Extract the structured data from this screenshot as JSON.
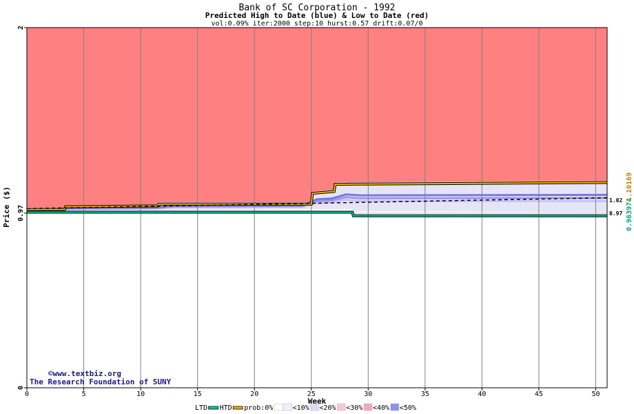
{
  "chart_data": {
    "type": "area",
    "title": "Bank of SC Corporation - 1992",
    "subtitle": "Predicted High to Date (blue) &  Low to Date (red)",
    "params": "vol:0.09% iter:2000 step:10 hurst:0.57 drift:0.07/0",
    "xlabel": "Week",
    "ylabel": "Price ($)",
    "xlim": [
      0,
      51
    ],
    "ylim": [
      0,
      2
    ],
    "x_ticks": [
      0,
      5,
      10,
      15,
      20,
      25,
      30,
      35,
      40,
      45,
      50
    ],
    "y_ticks": [
      0,
      0.97,
      2
    ],
    "y_tick_labels": [
      "0",
      "0.97",
      "2"
    ],
    "grid": true,
    "right_labels": [
      "0.97",
      "1.02"
    ],
    "right_axis_values": [
      "0.963974",
      "1.10169"
    ],
    "series": [
      {
        "name": "HTD",
        "color": "#f0b400",
        "points": [
          [
            0,
            0.99
          ],
          [
            3.3,
            0.99
          ],
          [
            3.4,
            1.005
          ],
          [
            11.5,
            1.01
          ],
          [
            11.6,
            1.02
          ],
          [
            25.0,
            1.02
          ],
          [
            25.1,
            1.08
          ],
          [
            27.0,
            1.09
          ],
          [
            27.1,
            1.13
          ],
          [
            51,
            1.14
          ]
        ]
      },
      {
        "name": "LTD",
        "color": "#00c8a0",
        "points": [
          [
            0,
            0.975
          ],
          [
            28.6,
            0.975
          ],
          [
            28.7,
            0.955
          ],
          [
            51,
            0.955
          ]
        ]
      }
    ],
    "bands": {
      "upper_edge": [
        [
          0,
          1.0
        ],
        [
          3.3,
          1.0
        ],
        [
          3.4,
          1.01
        ],
        [
          11.5,
          1.015
        ],
        [
          11.6,
          1.03
        ],
        [
          25.0,
          1.03
        ],
        [
          25.1,
          1.09
        ],
        [
          27.0,
          1.1
        ],
        [
          27.1,
          1.14
        ],
        [
          51,
          1.15
        ]
      ],
      "lower_edge": [
        [
          0,
          0.982
        ],
        [
          10,
          0.985
        ],
        [
          20,
          0.99
        ],
        [
          28.6,
          0.992
        ],
        [
          28.7,
          0.98
        ],
        [
          51,
          0.975
        ]
      ]
    },
    "legend": [
      "LTD",
      "HTD",
      "prob:0%",
      "<10%",
      "<20%",
      "<30%",
      "<40%",
      "<50%"
    ],
    "legend_colors": [
      "#00c8a0",
      "#f0b400",
      "#ffffff",
      "#f4f0fa",
      "#e8dcf0",
      "#dcc0e8",
      "#c8a0e0",
      "#ff8080"
    ],
    "legend_swatches": [
      "#ffffff",
      "#f0eef8",
      "#e2d8f4",
      "#f8c8d8",
      "#f4a8b8",
      "#9090f0",
      "#f08080"
    ],
    "watermark": [
      "©www.textbiz.org",
      "The Research Foundation of SUNY"
    ],
    "colors": {
      "bg_fill": "#ff8080",
      "grid": "#808080",
      "axis": "#000000"
    }
  }
}
